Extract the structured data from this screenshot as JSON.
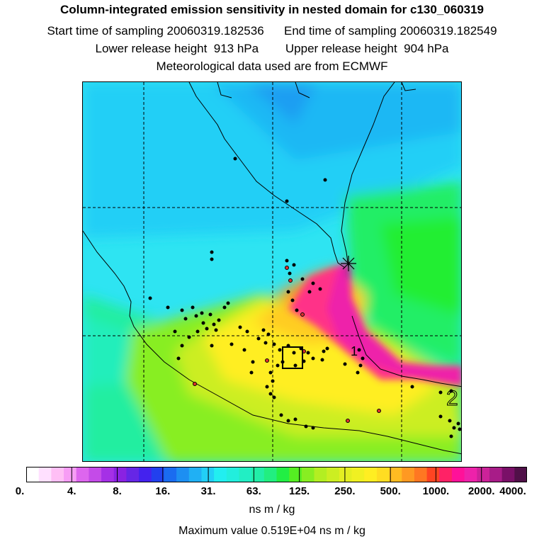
{
  "header": {
    "title": "Column-integrated emission sensitivity in nested domain for c130_060319",
    "line1": "Start time of sampling 20060319.182536      End time of sampling 20060319.182549",
    "line2": "Lower release height  913 hPa        Upper release height  904 hPa",
    "line3": "Meteorological data used are from ECMWF"
  },
  "map": {
    "region_labels": [
      "1",
      "2"
    ],
    "release_marker_icon": "asterisk-icon",
    "release_box_icon": "square-outline-icon",
    "point_color": "#000000",
    "highlight_point_color": "#e03030"
  },
  "colorbar": {
    "segments": [
      "#ffffff",
      "#ffe0ff",
      "#ffbff5",
      "#f79df5",
      "#dd66ee",
      "#c44be8",
      "#a530e6",
      "#8a22e2",
      "#6626e6",
      "#4422ee",
      "#2240ee",
      "#1a6cf0",
      "#1d8ff2",
      "#20b0f4",
      "#22cff6",
      "#22eef0",
      "#22eedd",
      "#22eec4",
      "#22eea8",
      "#22ee80",
      "#22ee44",
      "#55ee22",
      "#88ee22",
      "#b3ee22",
      "#ccee22",
      "#e4ee22",
      "#f0f022",
      "#ffee22",
      "#ffdd22",
      "#ffbb22",
      "#ff9922",
      "#ff7722",
      "#ff4422",
      "#ff2266",
      "#ff1199",
      "#ee22aa",
      "#cc2299",
      "#a81c88",
      "#7a1068",
      "#501048"
    ],
    "ticks": [
      "0.",
      "4.",
      "8.",
      "16.",
      "31.",
      "63.",
      "125.",
      "250.",
      "500.",
      "1000.",
      "2000.",
      "4000."
    ],
    "units": "ns m / kg"
  },
  "max_value": "Maximum value  0.519E+04 ns m / kg"
}
